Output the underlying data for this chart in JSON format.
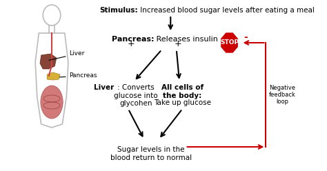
{
  "bg_color": "#ffffff",
  "stimulus_bold": "Stimulus:",
  "stimulus_text": " Increased blood sugar levels after eating a meal",
  "pancreas_bold": "Pancreas:",
  "pancreas_text": " Releases insulin",
  "liver_box_bold": "Liver",
  "liver_box_text": ": Converts\nglucose into\nglycohen",
  "cells_box_bold": "All cells of\nthe body:",
  "cells_box_text": "Take up glucose",
  "bottom_text": "Sugar levels in the\nblood return to normal",
  "neg_feedback_text": "Negative\nfeedback\nloop",
  "neg_sign": "-",
  "liver_label": "Liver",
  "pancreas_label": "Pancreas",
  "arrow_color": "#000000",
  "red_color": "#cc0000",
  "stop_color": "#cc0000",
  "stop_text": "STOP",
  "plus_sign": "+"
}
